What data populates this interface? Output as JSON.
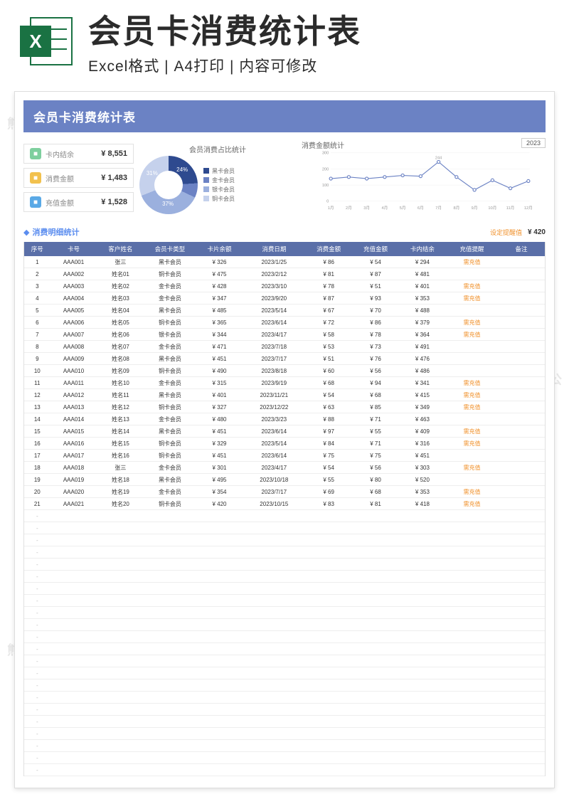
{
  "banner": {
    "title": "会员卡消费统计表",
    "subtitle": "Excel格式 | A4打印 | 内容可修改",
    "icon_letter": "X",
    "icon_color": "#1a7243"
  },
  "doc_header": "会员卡消费统计表",
  "watermark": "熊猫办公",
  "watermark_url": "www.tukuppt.com",
  "stat_cards": [
    {
      "icon_bg": "#7ecf9e",
      "label": "卡内结余",
      "value": "¥ 8,551"
    },
    {
      "icon_bg": "#f2c14e",
      "label": "消费金额",
      "value": "¥ 1,483"
    },
    {
      "icon_bg": "#5aa9e6",
      "label": "充值金额",
      "value": "¥ 1,528"
    }
  ],
  "donut": {
    "title": "会员消费占比统计",
    "slices": [
      {
        "label": "黑卡会员",
        "color": "#2e4a8f",
        "pct": 24
      },
      {
        "label": "金卡会员",
        "color": "#6b82c4",
        "pct": 8
      },
      {
        "label": "银卡会员",
        "color": "#9bb0de",
        "pct": 37
      },
      {
        "label": "铜卡会员",
        "color": "#c5d1ec",
        "pct": 31
      }
    ]
  },
  "line": {
    "title": "消费金额统计",
    "year": "2023",
    "y_ticks": [
      0,
      100,
      200,
      300
    ],
    "x_labels": [
      "1月",
      "2月",
      "3月",
      "4月",
      "5月",
      "6月",
      "7月",
      "8月",
      "9月",
      "10月",
      "11月",
      "12月"
    ],
    "peak_label": "244",
    "values": [
      140,
      150,
      140,
      150,
      160,
      155,
      244,
      150,
      70,
      130,
      80,
      125
    ],
    "line_color": "#6b82c4",
    "marker_color": "#6b82c4"
  },
  "detail": {
    "title": "消费明细统计",
    "threshold_label": "设定提醒值",
    "threshold_value": "¥ 420"
  },
  "table": {
    "columns": [
      "序号",
      "卡号",
      "客户姓名",
      "会员卡类型",
      "卡片余额",
      "消费日期",
      "消费金额",
      "充值金额",
      "卡内结余",
      "充值提醒",
      "备注"
    ],
    "alert_text": "需充值",
    "rows": [
      [
        "1",
        "AAA001",
        "张三",
        "黑卡会员",
        "¥ 326",
        "2023/1/25",
        "¥ 86",
        "¥ 54",
        "¥ 294",
        "需充值",
        ""
      ],
      [
        "2",
        "AAA002",
        "姓名01",
        "铜卡会员",
        "¥ 475",
        "2023/2/12",
        "¥ 81",
        "¥ 87",
        "¥ 481",
        "",
        ""
      ],
      [
        "3",
        "AAA003",
        "姓名02",
        "金卡会员",
        "¥ 428",
        "2023/3/10",
        "¥ 78",
        "¥ 51",
        "¥ 401",
        "需充值",
        ""
      ],
      [
        "4",
        "AAA004",
        "姓名03",
        "金卡会员",
        "¥ 347",
        "2023/9/20",
        "¥ 87",
        "¥ 93",
        "¥ 353",
        "需充值",
        ""
      ],
      [
        "5",
        "AAA005",
        "姓名04",
        "黑卡会员",
        "¥ 485",
        "2023/5/14",
        "¥ 67",
        "¥ 70",
        "¥ 488",
        "",
        ""
      ],
      [
        "6",
        "AAA006",
        "姓名05",
        "铜卡会员",
        "¥ 365",
        "2023/6/14",
        "¥ 72",
        "¥ 86",
        "¥ 379",
        "需充值",
        ""
      ],
      [
        "7",
        "AAA007",
        "姓名06",
        "银卡会员",
        "¥ 344",
        "2023/4/17",
        "¥ 58",
        "¥ 78",
        "¥ 364",
        "需充值",
        ""
      ],
      [
        "8",
        "AAA008",
        "姓名07",
        "金卡会员",
        "¥ 471",
        "2023/7/18",
        "¥ 53",
        "¥ 73",
        "¥ 491",
        "",
        ""
      ],
      [
        "9",
        "AAA009",
        "姓名08",
        "黑卡会员",
        "¥ 451",
        "2023/7/17",
        "¥ 51",
        "¥ 76",
        "¥ 476",
        "",
        ""
      ],
      [
        "10",
        "AAA010",
        "姓名09",
        "铜卡会员",
        "¥ 490",
        "2023/8/18",
        "¥ 60",
        "¥ 56",
        "¥ 486",
        "",
        ""
      ],
      [
        "11",
        "AAA011",
        "姓名10",
        "金卡会员",
        "¥ 315",
        "2023/9/19",
        "¥ 68",
        "¥ 94",
        "¥ 341",
        "需充值",
        ""
      ],
      [
        "12",
        "AAA012",
        "姓名11",
        "黑卡会员",
        "¥ 401",
        "2023/11/21",
        "¥ 54",
        "¥ 68",
        "¥ 415",
        "需充值",
        ""
      ],
      [
        "13",
        "AAA013",
        "姓名12",
        "铜卡会员",
        "¥ 327",
        "2023/12/22",
        "¥ 63",
        "¥ 85",
        "¥ 349",
        "需充值",
        ""
      ],
      [
        "14",
        "AAA014",
        "姓名13",
        "金卡会员",
        "¥ 480",
        "2023/3/23",
        "¥ 88",
        "¥ 71",
        "¥ 463",
        "",
        ""
      ],
      [
        "15",
        "AAA015",
        "姓名14",
        "黑卡会员",
        "¥ 451",
        "2023/6/14",
        "¥ 97",
        "¥ 55",
        "¥ 409",
        "需充值",
        ""
      ],
      [
        "16",
        "AAA016",
        "姓名15",
        "铜卡会员",
        "¥ 329",
        "2023/5/14",
        "¥ 84",
        "¥ 71",
        "¥ 316",
        "需充值",
        ""
      ],
      [
        "17",
        "AAA017",
        "姓名16",
        "铜卡会员",
        "¥ 451",
        "2023/6/14",
        "¥ 75",
        "¥ 75",
        "¥ 451",
        "",
        ""
      ],
      [
        "18",
        "AAA018",
        "张三",
        "金卡会员",
        "¥ 301",
        "2023/4/17",
        "¥ 54",
        "¥ 56",
        "¥ 303",
        "需充值",
        ""
      ],
      [
        "19",
        "AAA019",
        "姓名18",
        "黑卡会员",
        "¥ 495",
        "2023/10/18",
        "¥ 55",
        "¥ 80",
        "¥ 520",
        "",
        ""
      ],
      [
        "20",
        "AAA020",
        "姓名19",
        "金卡会员",
        "¥ 354",
        "2023/7/17",
        "¥ 69",
        "¥ 68",
        "¥ 353",
        "需充值",
        ""
      ],
      [
        "21",
        "AAA021",
        "姓名20",
        "铜卡会员",
        "¥ 420",
        "2023/10/15",
        "¥ 83",
        "¥ 81",
        "¥ 418",
        "需充值",
        ""
      ]
    ],
    "empty_rows": 22
  }
}
